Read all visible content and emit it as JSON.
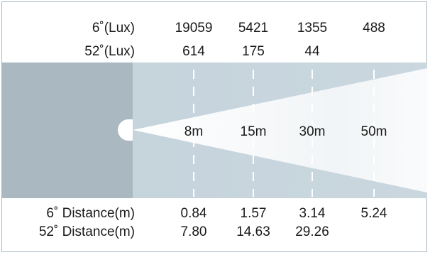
{
  "rows": {
    "lux6": {
      "label": "6˚(Lux)",
      "values": [
        "19059",
        "5421",
        "1355",
        "488"
      ]
    },
    "lux52": {
      "label": "52˚(Lux)",
      "values": [
        "614",
        "175",
        "44",
        ""
      ]
    },
    "dist6": {
      "label": "6˚ Distance(m)",
      "values": [
        "0.84",
        "1.57",
        "3.14",
        "5.24"
      ]
    },
    "dist52": {
      "label": "52˚ Distance(m)",
      "values": [
        "7.80",
        "14.63",
        "29.26",
        ""
      ]
    }
  },
  "distances": [
    "8m",
    "15m",
    "30m",
    "50m"
  ],
  "colors": {
    "left_panel": "#a9b8c1",
    "band": "#c5d3dc",
    "beam": "#ffffff",
    "dashes": "#ffffff",
    "border": "#a9b7c1"
  }
}
